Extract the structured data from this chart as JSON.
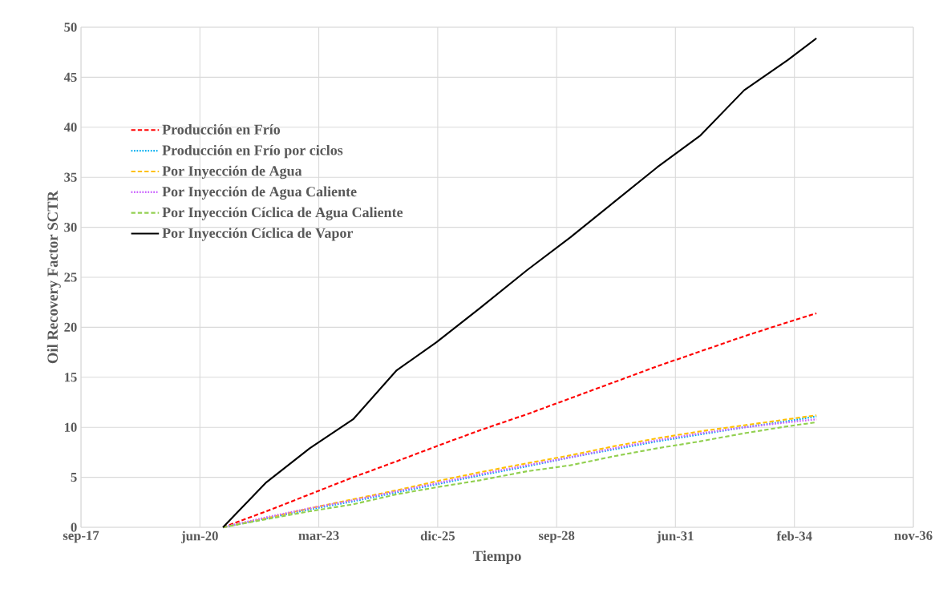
{
  "chart_data": {
    "type": "line",
    "xlabel": "Tiempo",
    "ylabel": "Oil Recovery Factor SCTR",
    "x": [
      "2021-01-01",
      "2022-01-01",
      "2023-01-01",
      "2024-01-01",
      "2025-01-01",
      "2025-12-01",
      "2026-12-01",
      "2028-01-01",
      "2029-01-01",
      "2030-01-01",
      "2031-01-01",
      "2032-01-01",
      "2033-01-01",
      "2034-01-01",
      "2034-09-01"
    ],
    "series": [
      {
        "name": "Producción en Frío",
        "color": "#ff0000",
        "line_style": "dashed",
        "values": [
          0,
          1.6,
          3.3,
          5.0,
          6.6,
          8.1,
          9.7,
          11.3,
          12.9,
          14.5,
          16.1,
          17.6,
          19.1,
          20.5,
          21.4
        ]
      },
      {
        "name": "Producción en Frío por ciclos",
        "color": "#00b0f0",
        "line_style": "dotted",
        "values": [
          0,
          0.9,
          1.8,
          2.6,
          3.5,
          4.3,
          5.2,
          6.1,
          7.0,
          7.8,
          8.6,
          9.3,
          10.0,
          10.6,
          11.1
        ]
      },
      {
        "name": "Por Inyección de Agua",
        "color": "#ffc000",
        "line_style": "dashed",
        "values": [
          0,
          0.9,
          1.9,
          2.8,
          3.7,
          4.6,
          5.5,
          6.4,
          7.2,
          8.1,
          8.9,
          9.6,
          10.2,
          10.8,
          11.2
        ]
      },
      {
        "name": "Por Inyección de Agua Caliente",
        "color": "#cc66ff",
        "line_style": "dotted",
        "values": [
          0,
          1.0,
          1.9,
          2.7,
          3.6,
          4.4,
          5.3,
          6.2,
          7.0,
          7.9,
          8.7,
          9.4,
          10.0,
          10.5,
          10.8
        ]
      },
      {
        "name": "Por Inyección Cíclica de Agua Caliente",
        "color": "#92d050",
        "line_style": "dashed",
        "values": [
          0,
          0.8,
          1.6,
          2.3,
          3.3,
          4.0,
          4.7,
          5.6,
          6.2,
          7.1,
          7.9,
          8.6,
          9.4,
          10.1,
          10.5
        ]
      },
      {
        "name": "Por Inyección Cíclica de Vapor",
        "color": "#000000",
        "line_style": "solid",
        "values": [
          0,
          4.5,
          7.9,
          10.8,
          15.7,
          18.5,
          21.9,
          25.7,
          29.0,
          32.5,
          36.0,
          39.2,
          43.7,
          46.7,
          48.9
        ]
      }
    ],
    "xlim": [
      "2017-09-25",
      "2036-11-24"
    ],
    "xticks": [
      {
        "value": "2017-09-25",
        "label": "sep-17"
      },
      {
        "value": "2020-06-21",
        "label": "jun-20"
      },
      {
        "value": "2023-03-18",
        "label": "mar-23"
      },
      {
        "value": "2025-12-12",
        "label": "dic-25"
      },
      {
        "value": "2028-09-07",
        "label": "sep-28"
      },
      {
        "value": "2031-06-03",
        "label": "jun-31"
      },
      {
        "value": "2034-02-28",
        "label": "feb-34"
      },
      {
        "value": "2036-11-24",
        "label": "nov-36"
      }
    ],
    "ylim": [
      0,
      50
    ],
    "yticks": [
      0,
      5,
      10,
      15,
      20,
      25,
      30,
      35,
      40,
      45,
      50
    ],
    "grid": true,
    "legend": "left"
  }
}
